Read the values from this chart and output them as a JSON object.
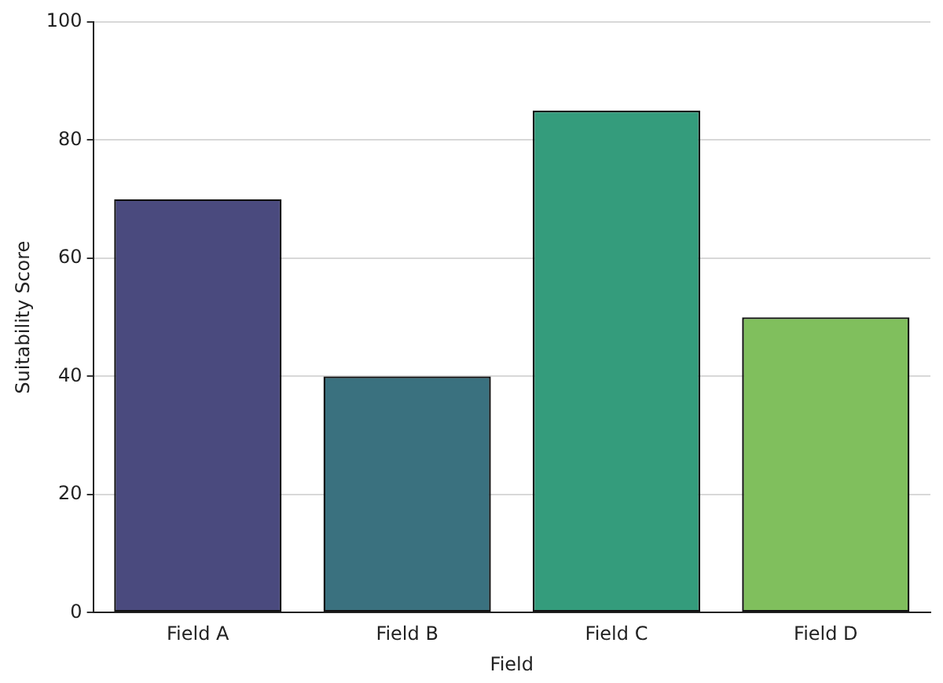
{
  "chart_data": {
    "type": "bar",
    "xlabel": "Field",
    "ylabel": "Suitability Score",
    "categories": [
      "Field A",
      "Field B",
      "Field C",
      "Field D"
    ],
    "values": [
      70,
      40,
      85,
      50
    ],
    "colors": [
      "#4a4a7e",
      "#3a717f",
      "#349c7c",
      "#80bf5d"
    ],
    "ylim": [
      0,
      100
    ],
    "yticks": [
      0,
      20,
      40,
      60,
      80,
      100
    ],
    "grid": "y",
    "legend": false
  }
}
